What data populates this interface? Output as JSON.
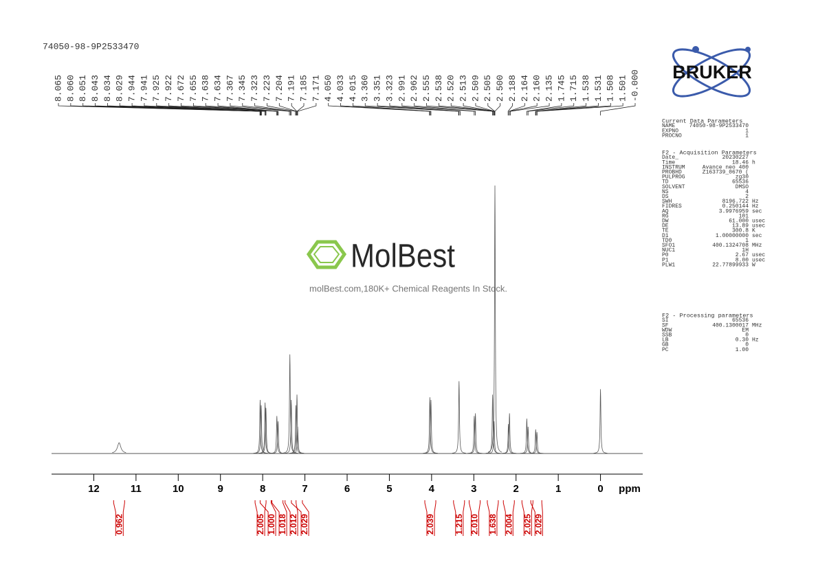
{
  "chart_data": {
    "type": "nmr",
    "title": "74050-98-9P2533470",
    "x_label": "ppm",
    "xlim": [
      13,
      -1
    ],
    "xticks": [
      12,
      11,
      10,
      9,
      8,
      7,
      6,
      5,
      4,
      3,
      2,
      1,
      0
    ],
    "ylim": [
      0,
      100
    ],
    "color": "#555555",
    "signals": {
      "x": [
        11.4,
        8.06,
        8.035,
        7.943,
        7.923,
        7.664,
        7.636,
        7.356,
        7.323,
        7.213,
        7.188,
        7.171,
        4.041,
        4.015,
        3.35,
        2.99,
        2.962,
        2.555,
        2.52,
        2.5,
        2.18,
        2.155,
        1.745,
        1.715,
        1.535,
        1.505,
        0
      ],
      "values": [
        4,
        20,
        18,
        19,
        17,
        14,
        12,
        37,
        20,
        18,
        22,
        10,
        21,
        20,
        27,
        14,
        15,
        22,
        12,
        100,
        11,
        15,
        13,
        10,
        9,
        8,
        24
      ]
    },
    "peak_labels": {
      "values": [
        8.065,
        8.06,
        8.051,
        8.043,
        8.034,
        8.029,
        7.944,
        7.941,
        7.925,
        7.922,
        7.672,
        7.655,
        7.638,
        7.634,
        7.367,
        7.345,
        7.323,
        7.223,
        7.204,
        7.191,
        7.185,
        7.171,
        4.05,
        4.033,
        4.015,
        3.36,
        3.351,
        3.323,
        2.991,
        2.962,
        2.555,
        2.538,
        2.52,
        2.513,
        2.509,
        2.505,
        2.5,
        2.188,
        2.164,
        2.16,
        2.135,
        1.745,
        1.715,
        1.538,
        1.531,
        1.508,
        1.501,
        0
      ],
      "value_labels": [
        "8.065",
        "8.060",
        "8.051",
        "8.043",
        "8.034",
        "8.029",
        "7.944",
        "7.941",
        "7.925",
        "7.922",
        "7.672",
        "7.655",
        "7.638",
        "7.634",
        "7.367",
        "7.345",
        "7.323",
        "7.223",
        "7.204",
        "7.191",
        "7.185",
        "7.171",
        "4.050",
        "4.033",
        "4.015",
        "3.360",
        "3.351",
        "3.323",
        "2.991",
        "2.962",
        "2.555",
        "2.538",
        "2.520",
        "2.513",
        "2.509",
        "2.505",
        "2.500",
        "2.188",
        "2.164",
        "2.160",
        "2.135",
        "1.745",
        "1.715",
        "1.538",
        "1.531",
        "1.508",
        "1.501",
        "-0.000"
      ]
    },
    "integrals": {
      "x": [
        11.4,
        8.05,
        7.93,
        7.65,
        7.34,
        7.19,
        4.03,
        3.35,
        2.98,
        2.55,
        2.17,
        1.73,
        1.52
      ],
      "values": [
        0.962,
        2.005,
        1,
        1.018,
        2.012,
        2.029,
        2.039,
        1.215,
        2.01,
        1.638,
        2.004,
        2.025,
        2.029
      ],
      "value_labels": [
        "0.962",
        "2.005",
        "1.000",
        "1.018",
        "2.012",
        "2.029",
        "2.039",
        "1.215",
        "2.010",
        "1.638",
        "2.004",
        "2.025",
        "2.029"
      ],
      "color": "#cc0000"
    }
  },
  "watermark": {
    "brand": "MolBest",
    "tagline": "molBest.com,180K+ Chemical Reagents In Stock."
  },
  "logo": "BRUKER",
  "parameters": [
    {
      "title": "Current Data Parameters",
      "rows": [
        [
          "NAME",
          "74050-98-9P2533470"
        ],
        [
          "EXPNO",
          "1"
        ],
        [
          "PROCNO",
          "1"
        ]
      ]
    },
    {
      "title": "F2 - Acquisition Parameters",
      "rows": [
        [
          "Date_",
          "20230227"
        ],
        [
          "Time",
          "18.46",
          "h"
        ],
        [
          "INSTRUM",
          "Avance neo 400"
        ],
        [
          "PROBHD",
          "Z163739_0670 ("
        ],
        [
          "PULPROG",
          "zg30"
        ],
        [
          "TD",
          "65536"
        ],
        [
          "SOLVENT",
          "DMSO"
        ],
        [
          "NS",
          "4"
        ],
        [
          "DS",
          "2"
        ],
        [
          "SWH",
          "8196.722",
          "Hz"
        ],
        [
          "FIDRES",
          "0.250144",
          "Hz"
        ],
        [
          "AQ",
          "3.9976959",
          "sec"
        ],
        [
          "RG",
          "101"
        ],
        [
          "DW",
          "61.000",
          "usec"
        ],
        [
          "DE",
          "13.89",
          "usec"
        ],
        [
          "TE",
          "300.8",
          "K"
        ],
        [
          "D1",
          "1.00000000",
          "sec"
        ],
        [
          "TD0",
          "1"
        ],
        [
          "SFO1",
          "400.1324708",
          "MHz"
        ],
        [
          "NUC1",
          "1H"
        ],
        [
          "P0",
          "2.67",
          "usec"
        ],
        [
          "P1",
          "8.00",
          "usec"
        ],
        [
          "PLW1",
          "22.77899933",
          "W"
        ]
      ]
    },
    {
      "title": "F2 - Processing parameters",
      "rows": [
        [
          "SI",
          "65536"
        ],
        [
          "SF",
          "400.1300017",
          "MHz"
        ],
        [
          "WDW",
          "EM"
        ],
        [
          "SSB",
          "0"
        ],
        [
          "LB",
          "0.30",
          "Hz"
        ],
        [
          "GB",
          "0"
        ],
        [
          "PC",
          "1.00"
        ]
      ]
    }
  ]
}
